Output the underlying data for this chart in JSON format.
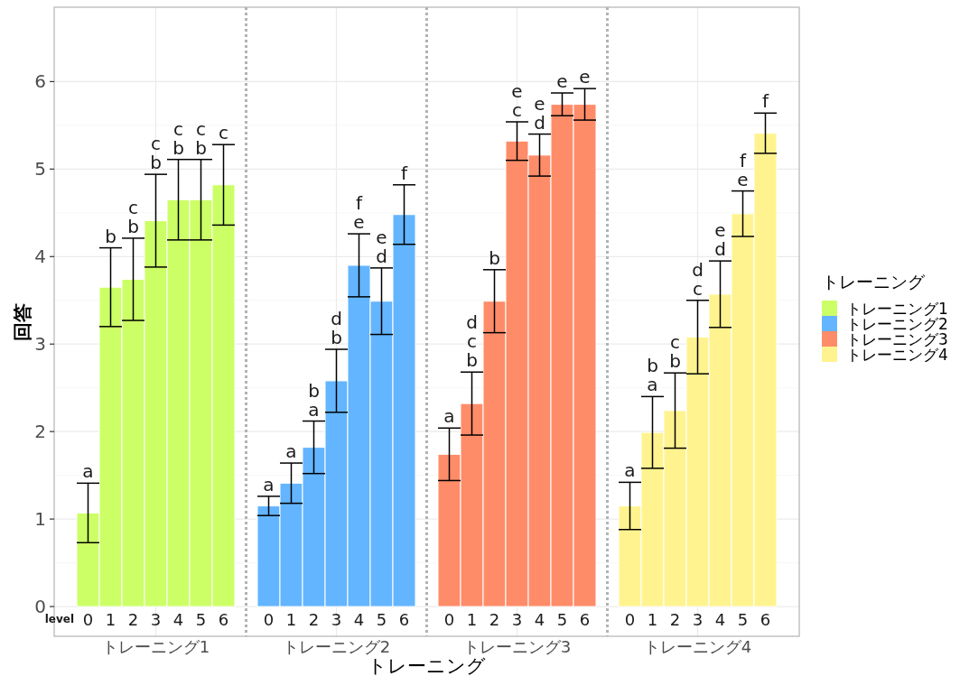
{
  "chart_data": {
    "type": "bar",
    "xlabel": "トレーニング",
    "ylabel": "回答",
    "legend_title": "トレーニング",
    "legend": "right",
    "grid": true,
    "ylim": [
      -0.34,
      6.85
    ],
    "yticks": [
      0,
      1,
      2,
      3,
      4,
      5,
      6
    ],
    "categories": [
      null,
      "0",
      "1",
      "2",
      "3",
      "4",
      "5",
      "6",
      null,
      "0",
      "1",
      "2",
      "3",
      "4",
      "5",
      "6",
      null,
      "0",
      "1",
      "2",
      "3",
      "4",
      "5",
      "6",
      null,
      "0",
      "1",
      "2",
      "3",
      "4",
      "5",
      "6",
      null
    ],
    "annotations": [
      "level",
      "トレーニング1",
      "トレーニング2",
      "トレーニング3",
      "トレーニング4"
    ],
    "series": [
      {
        "name": "トレーニング1",
        "color": "#ccff66",
        "values": [
          null,
          1.07,
          3.65,
          3.74,
          4.41,
          4.65,
          4.65,
          4.82,
          null,
          null,
          null,
          null,
          null,
          null,
          null,
          null,
          null,
          null,
          null,
          null,
          null,
          null,
          null,
          null,
          null,
          null,
          null,
          null,
          null,
          null,
          null,
          null,
          null
        ],
        "errors": [
          null,
          0.34,
          0.45,
          0.47,
          0.53,
          0.46,
          0.46,
          0.46,
          null,
          null,
          null,
          null,
          null,
          null,
          null,
          null,
          null,
          null,
          null,
          null,
          null,
          null,
          null,
          null,
          null,
          null,
          null,
          null,
          null,
          null,
          null,
          null,
          null
        ],
        "value_labels": [
          null,
          "a",
          "b",
          "c\nb",
          "c\nb",
          "c\nb",
          "c\nb",
          "c",
          null,
          null,
          null,
          null,
          null,
          null,
          null,
          null,
          null,
          null,
          null,
          null,
          null,
          null,
          null,
          null,
          null,
          null,
          null,
          null,
          null,
          null,
          null,
          null,
          null
        ]
      },
      {
        "name": "トレーニング2",
        "color": "#63b5ff",
        "values": [
          null,
          null,
          null,
          null,
          null,
          null,
          null,
          null,
          null,
          1.15,
          1.41,
          1.82,
          2.58,
          3.9,
          3.49,
          4.48,
          null,
          null,
          null,
          null,
          null,
          null,
          null,
          null,
          null,
          null,
          null,
          null,
          null,
          null,
          null,
          null,
          null
        ],
        "errors": [
          null,
          null,
          null,
          null,
          null,
          null,
          null,
          null,
          null,
          0.11,
          0.23,
          0.3,
          0.36,
          0.36,
          0.38,
          0.34,
          null,
          null,
          null,
          null,
          null,
          null,
          null,
          null,
          null,
          null,
          null,
          null,
          null,
          null,
          null,
          null,
          null
        ],
        "value_labels": [
          null,
          null,
          null,
          null,
          null,
          null,
          null,
          null,
          null,
          "a",
          "a",
          "b\na",
          "d\nb",
          "f\ne",
          "e\nd",
          "f",
          null,
          null,
          null,
          null,
          null,
          null,
          null,
          null,
          null,
          null,
          null,
          null,
          null,
          null,
          null,
          null,
          null
        ]
      },
      {
        "name": "トレーニング3",
        "color": "#ff8c69",
        "values": [
          null,
          null,
          null,
          null,
          null,
          null,
          null,
          null,
          null,
          null,
          null,
          null,
          null,
          null,
          null,
          null,
          null,
          1.74,
          2.32,
          3.49,
          5.32,
          5.16,
          5.74,
          5.74,
          null,
          null,
          null,
          null,
          null,
          null,
          null,
          null,
          null
        ],
        "errors": [
          null,
          null,
          null,
          null,
          null,
          null,
          null,
          null,
          null,
          null,
          null,
          null,
          null,
          null,
          null,
          null,
          null,
          0.3,
          0.36,
          0.36,
          0.22,
          0.24,
          0.13,
          0.18,
          null,
          null,
          null,
          null,
          null,
          null,
          null,
          null,
          null
        ],
        "value_labels": [
          null,
          null,
          null,
          null,
          null,
          null,
          null,
          null,
          null,
          null,
          null,
          null,
          null,
          null,
          null,
          null,
          null,
          "a",
          "d\nc\nb",
          "b",
          "e\nc",
          "e\nd",
          "e",
          "e",
          null,
          null,
          null,
          null,
          null,
          null,
          null,
          null,
          null
        ]
      },
      {
        "name": "トレーニング4",
        "color": "#fff38f",
        "values": [
          null,
          null,
          null,
          null,
          null,
          null,
          null,
          null,
          null,
          null,
          null,
          null,
          null,
          null,
          null,
          null,
          null,
          null,
          null,
          null,
          null,
          null,
          null,
          null,
          null,
          1.15,
          1.99,
          2.24,
          3.08,
          3.57,
          4.49,
          5.41,
          null
        ],
        "errors": [
          null,
          null,
          null,
          null,
          null,
          null,
          null,
          null,
          null,
          null,
          null,
          null,
          null,
          null,
          null,
          null,
          null,
          null,
          null,
          null,
          null,
          null,
          null,
          null,
          null,
          0.27,
          0.41,
          0.43,
          0.42,
          0.38,
          0.26,
          0.23,
          null
        ],
        "value_labels": [
          null,
          null,
          null,
          null,
          null,
          null,
          null,
          null,
          null,
          null,
          null,
          null,
          null,
          null,
          null,
          null,
          null,
          null,
          null,
          null,
          null,
          null,
          null,
          null,
          null,
          "a",
          "b\na",
          "c\nb",
          "d\nc",
          "e\nd",
          "f\ne",
          "f",
          null
        ]
      }
    ]
  }
}
